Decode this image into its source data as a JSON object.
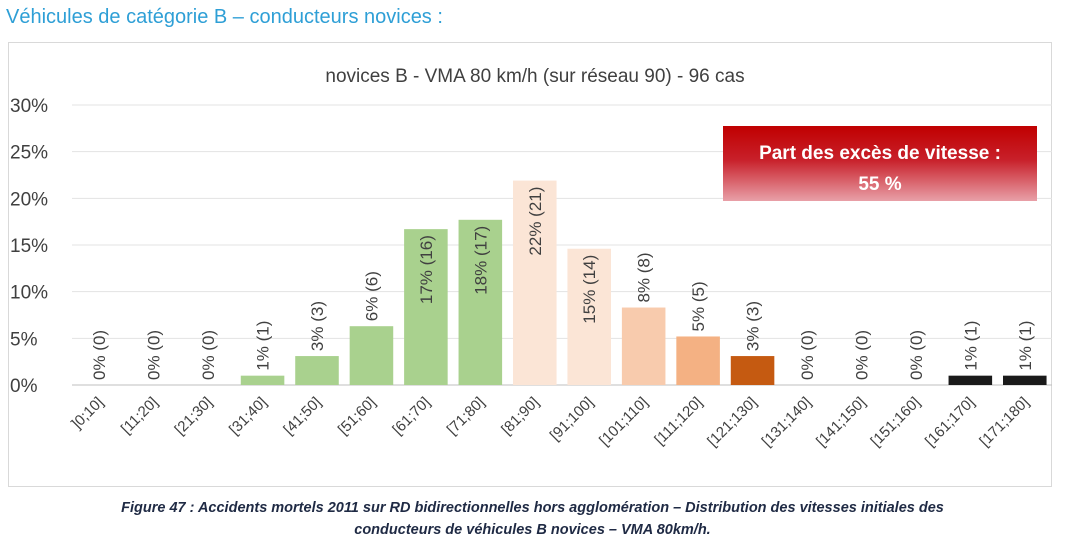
{
  "page": {
    "heading": "Véhicules de catégorie B – conducteurs novices :",
    "caption_line1": "Figure 47 : Accidents mortels 2011 sur RD bidirectionnelles hors agglomération – Distribution des vitesses initiales des",
    "caption_line2": "conducteurs de véhicules B novices – VMA 80km/h."
  },
  "callout": {
    "line1": "Part des excès de vitesse :",
    "line2": "55 %",
    "color_top": "#c00000",
    "color_bottom": "#e8a0a8"
  },
  "chart_data": {
    "type": "bar",
    "title": "novices B - VMA 80 km/h (sur réseau 90) - 96 cas",
    "xlabel": "",
    "ylabel": "",
    "ylim": [
      0,
      30
    ],
    "yticks": [
      "0%",
      "5%",
      "10%",
      "15%",
      "20%",
      "25%",
      "30%"
    ],
    "ytick_values": [
      0,
      5,
      10,
      15,
      20,
      25,
      30
    ],
    "grid": true,
    "categories": [
      "]0;10]",
      "[11;20]",
      "[21;30]",
      "[31;40]",
      "[41;50]",
      "[51;60]",
      "[61;70]",
      "[71;80]",
      "[81;90]",
      "[91;100]",
      "[101;110]",
      "[111;120]",
      "[121;130]",
      "[131;140]",
      "[141;150]",
      "[151;160]",
      "[161;170]",
      "[171;180]"
    ],
    "values": [
      0,
      0,
      0,
      1,
      3.1,
      6.3,
      16.7,
      17.7,
      21.9,
      14.6,
      8.3,
      5.2,
      3.1,
      0,
      0,
      0,
      1,
      1
    ],
    "labels": [
      "0% (0)",
      "0% (0)",
      "0% (0)",
      "1% (1)",
      "3% (3)",
      "6% (6)",
      "17% (16)",
      "18% (17)",
      "22% (21)",
      "15% (14)",
      "8% (8)",
      "5% (5)",
      "3% (3)",
      "0% (0)",
      "0% (0)",
      "0% (0)",
      "1% (1)",
      "1% (1)"
    ],
    "colors": [
      "#a9d18e",
      "#a9d18e",
      "#a9d18e",
      "#a9d18e",
      "#a9d18e",
      "#a9d18e",
      "#a9d18e",
      "#a9d18e",
      "#fbe5d6",
      "#fbe5d6",
      "#f8cbad",
      "#f4b183",
      "#c55a11",
      "#f8cbad",
      "#f8cbad",
      "#f8cbad",
      "#1a1a1a",
      "#1a1a1a"
    ]
  }
}
